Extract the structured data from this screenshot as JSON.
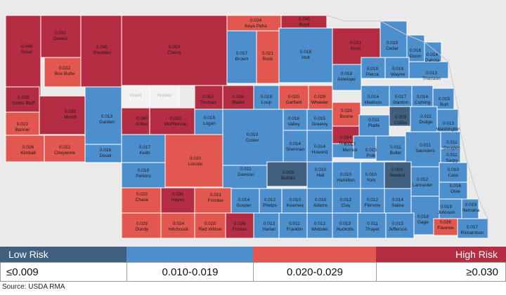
{
  "legend": {
    "low_label": "Low Risk",
    "high_label": "High Risk",
    "bins": [
      {
        "label": "≤0.009",
        "color": "#41607f"
      },
      {
        "label": "0.010-0.019",
        "color": "#4d8fcd"
      },
      {
        "label": "0.020-0.029",
        "color": "#e2574f"
      },
      {
        "label": "≥0.030",
        "color": "#b52d43"
      }
    ]
  },
  "source": "Source: USDA RMA",
  "map_colors": {
    "background": "#eaeaea",
    "grey_county": "#f2f2f2",
    "border": "#ffffff",
    "low": "#41607f",
    "mid": "#4d8fcd",
    "midhigh": "#e2574f",
    "high": "#b52d43"
  },
  "counties": [
    {
      "name": "Sioux",
      "value": "0.046"
    },
    {
      "name": "Dawes",
      "value": "0.031"
    },
    {
      "name": "Sheridan",
      "value": "0.045"
    },
    {
      "name": "Cherry",
      "value": "0.053"
    },
    {
      "name": "Keya Paha",
      "value": "0.024"
    },
    {
      "name": "Boyd",
      "value": "0.045"
    },
    {
      "name": "Brown",
      "value": "0.017"
    },
    {
      "name": "Rock",
      "value": "0.021"
    },
    {
      "name": "Holt",
      "value": "0.018"
    },
    {
      "name": "Knox",
      "value": "0.031"
    },
    {
      "name": "Cedar",
      "value": "0.019"
    },
    {
      "name": "Dixon",
      "value": "0.016"
    },
    {
      "name": "Dakota",
      "value": "0.014"
    },
    {
      "name": "Box Butte",
      "value": "0.022"
    },
    {
      "name": "Antelope",
      "value": "0.018"
    },
    {
      "name": "Pierce",
      "value": "0.019"
    },
    {
      "name": "Wayne",
      "value": "0.016"
    },
    {
      "name": "Thurston",
      "value": "0.013"
    },
    {
      "name": "Scotts Bluff",
      "value": "0.039"
    },
    {
      "name": "Thomas",
      "value": "0.052"
    },
    {
      "name": "Blaine",
      "value": "0.034"
    },
    {
      "name": "Loup",
      "value": "0.019"
    },
    {
      "name": "Garfield",
      "value": "0.020"
    },
    {
      "name": "Wheeler",
      "value": "0.028"
    },
    {
      "name": "Madison",
      "value": "0.014"
    },
    {
      "name": "Stanton",
      "value": "0.017"
    },
    {
      "name": "Cuming",
      "value": "0.014"
    },
    {
      "name": "Burt",
      "value": "0.015"
    },
    {
      "name": "Morrill",
      "value": "0.035"
    },
    {
      "name": "Garden",
      "value": "0.013"
    },
    {
      "name": "Boone",
      "value": "0.020"
    },
    {
      "name": "Banner",
      "value": "0.022"
    },
    {
      "name": "Arthur",
      "value": "0.040"
    },
    {
      "name": "McPherson",
      "value": "0.032"
    },
    {
      "name": "Logan",
      "value": "0.015"
    },
    {
      "name": "Custer",
      "value": "0.010"
    },
    {
      "name": "Valley",
      "value": "0.016"
    },
    {
      "name": "Greeley",
      "value": "0.015"
    },
    {
      "name": "Platte",
      "value": "0.011"
    },
    {
      "name": "Colfax",
      "value": "0.009"
    },
    {
      "name": "Dodge",
      "value": "0.011"
    },
    {
      "name": "Washington",
      "value": "0.013"
    },
    {
      "name": "Nance",
      "value": "0.034"
    },
    {
      "name": "Kimball",
      "value": "0.026"
    },
    {
      "name": "Cheyenne",
      "value": "0.022"
    },
    {
      "name": "Keith",
      "value": "0.017"
    },
    {
      "name": "Sherman",
      "value": "0.014"
    },
    {
      "name": "Howard",
      "value": "0.014"
    },
    {
      "name": "Merrick",
      "value": "0.017"
    },
    {
      "name": "Polk",
      "value": "0.015"
    },
    {
      "name": "Butler",
      "value": "0.011"
    },
    {
      "name": "Saunders",
      "value": "0.011"
    },
    {
      "name": "Douglas",
      "value": "0.011"
    },
    {
      "name": "Sarpy",
      "value": "0.011"
    },
    {
      "name": "Deuel",
      "value": "0.016"
    },
    {
      "name": "Lincoln",
      "value": "0.020"
    },
    {
      "name": "Perkins",
      "value": "0.018"
    },
    {
      "name": "Dawson",
      "value": "0.011"
    },
    {
      "name": "Buffalo",
      "value": "0.009"
    },
    {
      "name": "Hall",
      "value": "0.010"
    },
    {
      "name": "Hamilton",
      "value": "0.010"
    },
    {
      "name": "York",
      "value": "0.010"
    },
    {
      "name": "Seward",
      "value": "0.009"
    },
    {
      "name": "Lancaster",
      "value": "0.012"
    },
    {
      "name": "Cass",
      "value": "0.010"
    },
    {
      "name": "Otoe",
      "value": "0.016"
    },
    {
      "name": "Chase",
      "value": "0.022"
    },
    {
      "name": "Hayes",
      "value": "0.036"
    },
    {
      "name": "Frontier",
      "value": "0.021"
    },
    {
      "name": "Gosper",
      "value": "0.014"
    },
    {
      "name": "Phelps",
      "value": "0.012"
    },
    {
      "name": "Kearney",
      "value": "0.010"
    },
    {
      "name": "Adams",
      "value": "0.010"
    },
    {
      "name": "Clay",
      "value": "0.012"
    },
    {
      "name": "Fillmore",
      "value": "0.012"
    },
    {
      "name": "Saline",
      "value": "0.014"
    },
    {
      "name": "Gage",
      "value": "0.018"
    },
    {
      "name": "Johnson",
      "value": "0.019"
    },
    {
      "name": "Nemaha",
      "value": "0.019"
    },
    {
      "name": "Dundy",
      "value": "0.029"
    },
    {
      "name": "Hitchcock",
      "value": "0.024"
    },
    {
      "name": "Red Willow",
      "value": "0.020"
    },
    {
      "name": "Furnas",
      "value": "0.036"
    },
    {
      "name": "Harlan",
      "value": "0.013"
    },
    {
      "name": "Franklin",
      "value": "0.011"
    },
    {
      "name": "Webster",
      "value": "0.012"
    },
    {
      "name": "Nuckolls",
      "value": "0.013"
    },
    {
      "name": "Thayer",
      "value": "0.011"
    },
    {
      "name": "Jefferson",
      "value": "0.015"
    },
    {
      "name": "Pawnee",
      "value": "0.026"
    },
    {
      "name": "Richardson",
      "value": "0.017"
    },
    {
      "name": "Grant",
      "value": ""
    },
    {
      "name": "Hooker",
      "value": ""
    }
  ]
}
